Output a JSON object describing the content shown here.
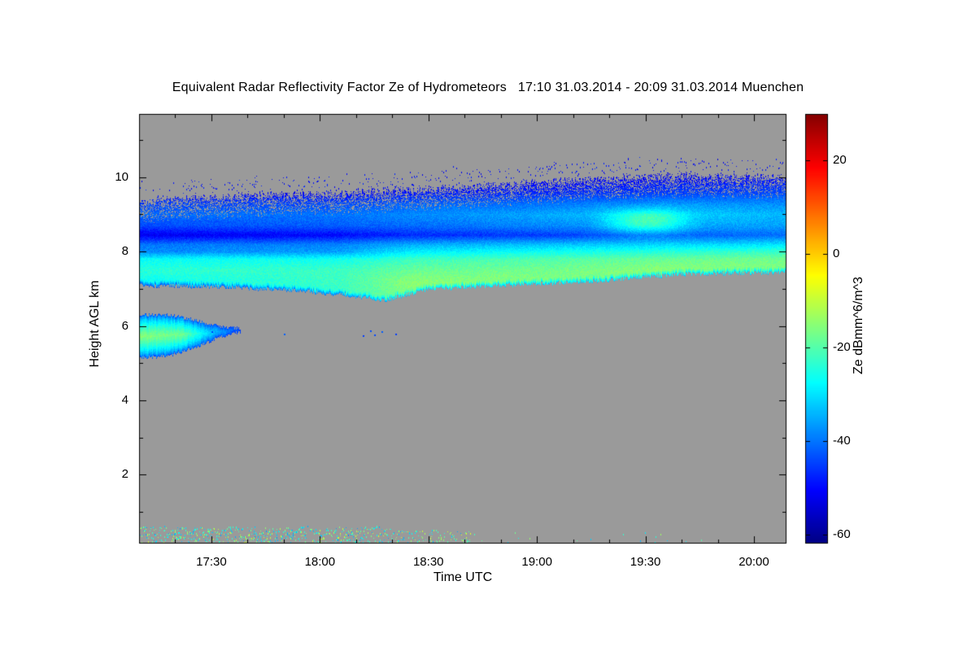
{
  "chart_data": {
    "type": "heatmap",
    "title": "Equivalent Radar Reflectivity Factor Ze of Hydrometeors",
    "period": "17:10 31.03.2014 - 20:09 31.03.2014",
    "station": "Muenchen",
    "title_line": "Equivalent Radar Reflectivity Factor Ze of Hydrometeors   17:10 31.03.2014 - 20:09 31.03.2014 Muenchen",
    "xlabel": "Time UTC",
    "ylabel": "Height AGL km",
    "colorbar_label": "Ze dBmm^6/m^3",
    "no_data_color": "#9a9a9a",
    "grid": false,
    "x_axis": {
      "start_minutes": 1030,
      "end_minutes": 1209,
      "start_label": "17:10",
      "end_label": "20:09",
      "ticks": [
        {
          "label": "17:30",
          "minutes": 1050
        },
        {
          "label": "18:00",
          "minutes": 1080
        },
        {
          "label": "18:30",
          "minutes": 1110
        },
        {
          "label": "19:00",
          "minutes": 1140
        },
        {
          "label": "19:30",
          "minutes": 1170
        },
        {
          "label": "20:00",
          "minutes": 1200
        }
      ]
    },
    "y_axis": {
      "min_km": 0.15,
      "max_km": 11.7,
      "ticks": [
        {
          "label": "2",
          "km": 2
        },
        {
          "label": "4",
          "km": 4
        },
        {
          "label": "6",
          "km": 6
        },
        {
          "label": "8",
          "km": 8
        },
        {
          "label": "10",
          "km": 10
        }
      ]
    },
    "z_axis": {
      "min": -62,
      "max": 30,
      "units": "dBmm^6/m^3",
      "ticks": [
        {
          "label": "20",
          "value": 20
        },
        {
          "label": "0",
          "value": 0
        },
        {
          "label": "-20",
          "value": -20
        },
        {
          "label": "-40",
          "value": -40
        },
        {
          "label": "-60",
          "value": -60
        }
      ]
    },
    "colormap_stops": [
      [
        0.0,
        [
          0,
          0,
          130
        ]
      ],
      [
        0.125,
        [
          0,
          0,
          255
        ]
      ],
      [
        0.375,
        [
          0,
          255,
          255
        ]
      ],
      [
        0.625,
        [
          255,
          255,
          0
        ]
      ],
      [
        0.875,
        [
          255,
          0,
          0
        ]
      ],
      [
        1.0,
        [
          132,
          0,
          0
        ]
      ]
    ],
    "band": {
      "time_keys": [
        1030,
        1055,
        1075,
        1090,
        1098,
        1110,
        1130,
        1155,
        1180,
        1209
      ],
      "base_km": [
        7.1,
        7.05,
        6.95,
        6.8,
        6.7,
        7.0,
        7.1,
        7.2,
        7.4,
        7.45
      ],
      "top_km": [
        9.35,
        9.5,
        9.55,
        9.6,
        9.65,
        9.7,
        9.8,
        9.95,
        10.05,
        10.0
      ],
      "profile_heights": [
        6.7,
        7.2,
        7.5,
        7.8,
        8.0,
        8.2,
        8.45,
        8.7,
        9.0,
        9.3,
        9.6,
        10.1
      ],
      "profile_times": [
        1030,
        1085,
        1105,
        1145,
        1175,
        1209
      ],
      "profile_values": [
        [
          -30,
          -27,
          -24,
          -27,
          -38,
          -40,
          -52,
          -44,
          -41,
          -45,
          -52,
          -55
        ],
        [
          -24,
          -22,
          -22,
          -26,
          -36,
          -39,
          -50,
          -42,
          -40,
          -44,
          -51,
          -55
        ],
        [
          -16,
          -15,
          -18,
          -22,
          -29,
          -35,
          -47,
          -41,
          -38,
          -42,
          -49,
          -54
        ],
        [
          -19,
          -16,
          -17,
          -20,
          -26,
          -33,
          -45,
          -38,
          -35,
          -40,
          -47,
          -53
        ],
        [
          -20,
          -17,
          -15,
          -18,
          -24,
          -31,
          -42,
          -35,
          -31,
          -37,
          -45,
          -52
        ],
        [
          -24,
          -19,
          -16,
          -17,
          -22,
          -30,
          -41,
          -36,
          -34,
          -38,
          -44,
          -51
        ]
      ]
    },
    "plume": {
      "t0": 1152,
      "t1": 1188,
      "h0": 8.25,
      "h1": 9.35,
      "boost_db": 13
    },
    "blob": {
      "time_keys": [
        1030,
        1038,
        1046,
        1052,
        1058
      ],
      "base_km": [
        5.15,
        5.2,
        5.45,
        5.7,
        5.85
      ],
      "top_km": [
        6.3,
        6.32,
        6.15,
        6.0,
        5.95
      ],
      "core_times": [
        1030,
        1042,
        1050,
        1058
      ],
      "core_values": [
        -15,
        -17,
        -32,
        -44
      ]
    },
    "mid_level_specks": [
      [
        1050,
        5.85
      ],
      [
        1070,
        5.8
      ],
      [
        1092,
        5.75
      ],
      [
        1094,
        5.88
      ],
      [
        1095,
        5.78
      ],
      [
        1097,
        5.85
      ],
      [
        1101,
        5.8
      ]
    ],
    "surface_layer": {
      "segments": [
        {
          "t0": 1030,
          "t1": 1100,
          "p": 0.6,
          "h_max": 0.6
        },
        {
          "t0": 1100,
          "t1": 1122,
          "p": 0.35,
          "h_max": 0.5
        },
        {
          "t0": 1122,
          "t1": 1200,
          "p": 0.015,
          "h_max": 0.45
        }
      ],
      "value_min": -36,
      "value_max": -8
    }
  }
}
